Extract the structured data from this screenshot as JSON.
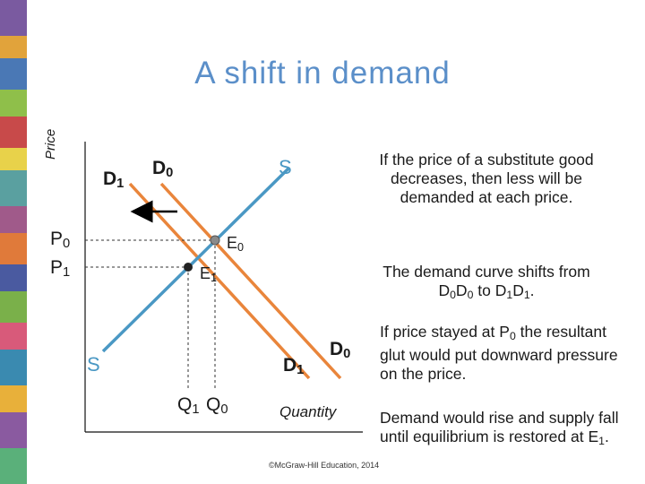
{
  "slide": {
    "title": "A shift in demand",
    "copyright": "©McGraw-Hill Education, 2014"
  },
  "axes": {
    "y_label": "Price",
    "x_label": "Quantity"
  },
  "labels": {
    "d1_top": {
      "main": "D",
      "sub": "1"
    },
    "d0_top": {
      "main": "D",
      "sub": "0"
    },
    "s_top": "S",
    "s_bottom": "S",
    "d1_bottom": {
      "main": "D",
      "sub": "1"
    },
    "d0_bottom": {
      "main": "D",
      "sub": "0"
    },
    "p0": {
      "main": "P",
      "sub": "0"
    },
    "p1": {
      "main": "P",
      "sub": "1"
    },
    "e0": {
      "main": "E",
      "sub": "0"
    },
    "e1": {
      "main": "E",
      "sub": "1"
    },
    "q1": {
      "main": "Q",
      "sub": "1"
    },
    "q0": {
      "main": "Q",
      "sub": "0"
    }
  },
  "text": {
    "para1": "If the price of a substitute good decreases, then less will be demanded at each price.",
    "para2": {
      "a": "The demand curve shifts from D",
      "s1": "0",
      "b": "D",
      "s2": "0",
      "c": " to D",
      "s3": "1",
      "d": "D",
      "s4": "1",
      "e": "."
    },
    "para3": {
      "a": "If price stayed at P",
      "s1": "0",
      "b": " the resultant glut would put downward pressure on the price."
    },
    "para4": {
      "a": "Demand would rise and supply fall until equilibrium is restored at E",
      "s1": "1",
      "b": "."
    }
  },
  "colors": {
    "demand_curve": "#e9853b",
    "supply_curve": "#4a98c4",
    "title": "#5b8fc9",
    "arrow": "#000000"
  }
}
